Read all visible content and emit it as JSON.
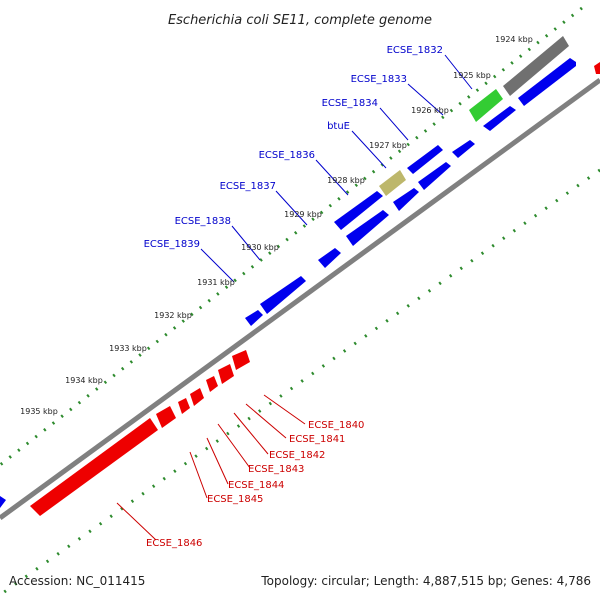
{
  "title": "Escherichia coli SE11, complete genome",
  "footer": {
    "accession": "Accession: NC_011415",
    "topology": "Topology: circular; Length: 4,887,515 bp; Genes: 4,786"
  },
  "ticks": [
    "1924 kbp",
    "1925 kbp",
    "1926 kbp",
    "1927 kbp",
    "1928 kbp",
    "1929 kbp",
    "1930 kbp",
    "1931 kbp",
    "1932 kbp",
    "1933 kbp",
    "1934 kbp",
    "1935 kbp"
  ],
  "genes_forward": [
    "ECSE_1832",
    "ECSE_1833",
    "ECSE_1834",
    "btuE",
    "ECSE_1836",
    "ECSE_1837",
    "ECSE_1838",
    "ECSE_1839"
  ],
  "genes_reverse": [
    "ECSE_1840",
    "ECSE_1841",
    "ECSE_1842",
    "ECSE_1843",
    "ECSE_1844",
    "ECSE_1845",
    "ECSE_1846"
  ],
  "colors": {
    "forward": "#0000ee",
    "reverse": "#ee0000",
    "backbone": "#808080",
    "tick_marks": "#2e8b2e",
    "highlight_green": "#33cc33",
    "highlight_khaki": "#bdb76b",
    "highlight_gray": "#707070"
  }
}
